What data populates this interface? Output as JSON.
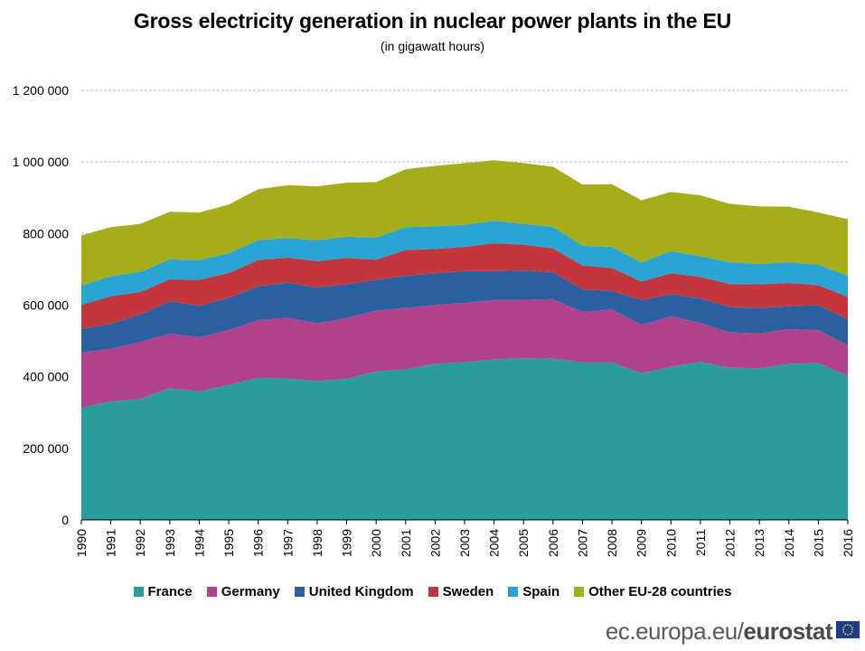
{
  "title": "Gross electricity generation in nuclear power plants in the EU",
  "subtitle": "(in gigawatt hours)",
  "footer": {
    "site": "ec.europa.eu/",
    "brand": "eurostat",
    "flag_icon": "eu-flag-icon"
  },
  "colors": {
    "France": "#2a9c9c",
    "Germany": "#b0428a",
    "United Kingdom": "#2a5fa0",
    "Sweden": "#c2373b",
    "Spain": "#2aa5d3",
    "Other EU-28 countries": "#a5ad1a",
    "grid": "#b8b8c8"
  },
  "chart_data": {
    "type": "area",
    "stacked": true,
    "title": "Gross electricity generation in nuclear power plants in the EU",
    "subtitle": "(in gigawatt hours)",
    "xlabel": "",
    "ylabel": "",
    "ylim": [
      0,
      1200000
    ],
    "y_ticks": [
      0,
      200000,
      400000,
      600000,
      800000,
      1000000,
      1200000
    ],
    "y_tick_labels": [
      "0",
      "200 000",
      "400 000",
      "600 000",
      "800 000",
      "1 000 000",
      "1 200 000"
    ],
    "legend_position": "bottom",
    "x": [
      "1990",
      "1991",
      "1992",
      "1993",
      "1994",
      "1995",
      "1996",
      "1997",
      "1998",
      "1999",
      "2000",
      "2001",
      "2002",
      "2003",
      "2004",
      "2005",
      "2006",
      "2007",
      "2008",
      "2009",
      "2010",
      "2011",
      "2012",
      "2013",
      "2014",
      "2015",
      "2016"
    ],
    "series": [
      {
        "name": "France",
        "values": [
          314000,
          331000,
          338000,
          368000,
          359000,
          377000,
          397000,
          395000,
          388000,
          394000,
          415000,
          421000,
          436000,
          441000,
          448000,
          452000,
          450000,
          440000,
          440000,
          410000,
          428000,
          442000,
          425000,
          424000,
          436000,
          438000,
          403000
        ]
      },
      {
        "name": "Germany",
        "values": [
          153000,
          147000,
          159000,
          153000,
          151000,
          154000,
          161000,
          170000,
          161000,
          170000,
          170000,
          171000,
          165000,
          165000,
          167000,
          163000,
          167000,
          141000,
          148000,
          135000,
          141000,
          108000,
          99000,
          97000,
          97000,
          92000,
          85000
        ]
      },
      {
        "name": "United Kingdom",
        "values": [
          66000,
          70000,
          77000,
          90000,
          88000,
          89000,
          95000,
          98000,
          100000,
          95000,
          85000,
          90000,
          88000,
          89000,
          80000,
          82000,
          75000,
          63000,
          52000,
          69000,
          62000,
          69000,
          71000,
          71000,
          64000,
          70000,
          72000
        ]
      },
      {
        "name": "Sweden",
        "values": [
          68000,
          77000,
          63000,
          61000,
          73000,
          70000,
          73000,
          70000,
          74000,
          73000,
          57000,
          72000,
          68000,
          68000,
          78000,
          72000,
          67000,
          67000,
          64000,
          52000,
          58000,
          60000,
          64000,
          66000,
          65000,
          56000,
          63000
        ]
      },
      {
        "name": "Spain",
        "values": [
          54000,
          56000,
          56000,
          56000,
          55000,
          55000,
          56000,
          55000,
          59000,
          59000,
          62000,
          64000,
          63000,
          62000,
          63000,
          58000,
          60000,
          55000,
          59000,
          53000,
          62000,
          58000,
          61000,
          57000,
          58000,
          57000,
          59000
        ]
      },
      {
        "name": "Other EU-28 countries",
        "values": [
          140000,
          137000,
          134000,
          133000,
          133000,
          136000,
          142000,
          147000,
          150000,
          151000,
          155000,
          162000,
          169000,
          172000,
          169000,
          170000,
          168000,
          171000,
          175000,
          174000,
          165000,
          170000,
          163000,
          161000,
          155000,
          146000,
          158000
        ]
      }
    ]
  }
}
